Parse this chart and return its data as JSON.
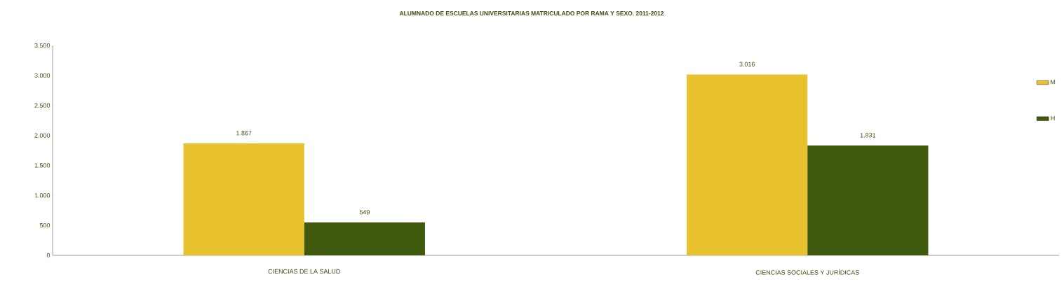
{
  "chart_data": {
    "type": "bar",
    "title": "ALUMNADO DE ESCUELAS UNIVERSITARIAS MATRICULADO POR RAMA Y SEXO. 2011-2012",
    "categories": [
      "CIENCIAS DE LA SALUD",
      "CIENCIAS SOCIALES Y JURÍDICAS"
    ],
    "series": [
      {
        "name": "M",
        "color": "#e8c22e",
        "values": [
          1867,
          3016
        ],
        "value_labels": [
          "1.867",
          "3.016"
        ]
      },
      {
        "name": "H",
        "color": "#3f5a0c",
        "values": [
          549,
          1831
        ],
        "value_labels": [
          "549",
          "1.831"
        ]
      }
    ],
    "ylim": [
      0,
      3500
    ],
    "yticks": [
      0,
      500,
      {
        "value": 1000,
        "label": "1.000"
      },
      {
        "value": 1500,
        "label": "1.500"
      },
      {
        "value": 2000,
        "label": "2.000"
      },
      {
        "value": 2500,
        "label": "2.500"
      },
      {
        "value": 3000,
        "label": "3.000"
      },
      {
        "value": 3500,
        "label": "3.500"
      }
    ],
    "legend": "right"
  }
}
